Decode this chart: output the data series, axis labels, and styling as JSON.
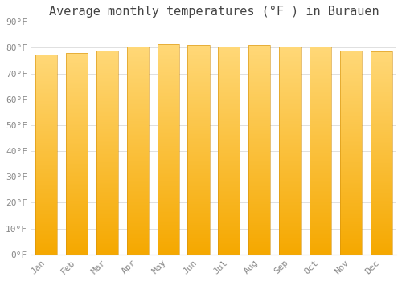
{
  "title": "Average monthly temperatures (°F ) in Burauen",
  "categories": [
    "Jan",
    "Feb",
    "Mar",
    "Apr",
    "May",
    "Jun",
    "Jul",
    "Aug",
    "Sep",
    "Oct",
    "Nov",
    "Dec"
  ],
  "values": [
    77.5,
    78.0,
    79.0,
    80.5,
    81.5,
    81.0,
    80.5,
    81.0,
    80.5,
    80.5,
    79.0,
    78.5
  ],
  "ylim": [
    0,
    90
  ],
  "yticks": [
    0,
    10,
    20,
    30,
    40,
    50,
    60,
    70,
    80,
    90
  ],
  "ytick_labels": [
    "0°F",
    "10°F",
    "20°F",
    "30°F",
    "40°F",
    "50°F",
    "60°F",
    "70°F",
    "80°F",
    "90°F"
  ],
  "bar_color_bottom": "#F5A800",
  "bar_color_top": "#FFD878",
  "bar_edge_color": "#D4900A",
  "background_color": "#FFFFFF",
  "grid_color": "#E0E0E0",
  "title_fontsize": 11,
  "tick_fontsize": 8,
  "bar_width": 0.72,
  "gradient_steps": 200
}
